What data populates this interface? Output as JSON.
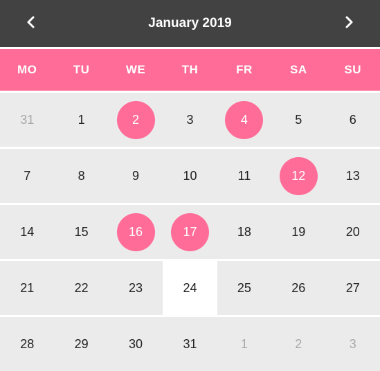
{
  "header": {
    "title": "January 2019",
    "prev_icon": "chevron-left-icon",
    "next_icon": "chevron-right-icon"
  },
  "weekdays": [
    "MO",
    "TU",
    "WE",
    "TH",
    "FR",
    "SA",
    "SU"
  ],
  "colors": {
    "header_bg": "#424242",
    "accent": "#ff6c98",
    "cell_bg": "#ebebeb",
    "muted_text": "#a8a8a8"
  },
  "weeks": [
    [
      {
        "day": "31",
        "muted": true
      },
      {
        "day": "1"
      },
      {
        "day": "2",
        "selected": true
      },
      {
        "day": "3"
      },
      {
        "day": "4",
        "selected": true
      },
      {
        "day": "5"
      },
      {
        "day": "6"
      }
    ],
    [
      {
        "day": "7"
      },
      {
        "day": "8"
      },
      {
        "day": "9"
      },
      {
        "day": "10"
      },
      {
        "day": "11"
      },
      {
        "day": "12",
        "selected": true
      },
      {
        "day": "13"
      }
    ],
    [
      {
        "day": "14"
      },
      {
        "day": "15"
      },
      {
        "day": "16",
        "selected": true
      },
      {
        "day": "17",
        "selected": true
      },
      {
        "day": "18"
      },
      {
        "day": "19"
      },
      {
        "day": "20"
      }
    ],
    [
      {
        "day": "21"
      },
      {
        "day": "22"
      },
      {
        "day": "23"
      },
      {
        "day": "24",
        "today": true
      },
      {
        "day": "25"
      },
      {
        "day": "26"
      },
      {
        "day": "27"
      }
    ],
    [
      {
        "day": "28"
      },
      {
        "day": "29"
      },
      {
        "day": "30"
      },
      {
        "day": "31"
      },
      {
        "day": "1",
        "muted": true
      },
      {
        "day": "2",
        "muted": true
      },
      {
        "day": "3",
        "muted": true
      }
    ]
  ]
}
